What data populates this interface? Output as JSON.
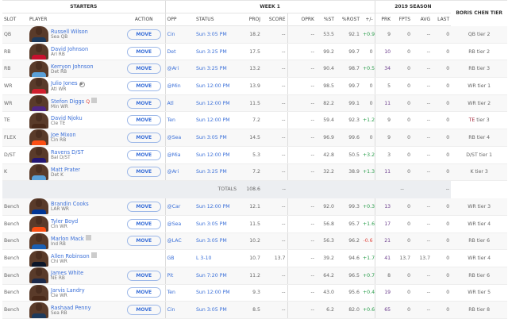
{
  "headers": {
    "starters": "STARTERS",
    "week": "WEEK 1",
    "season": "2019 SEASON",
    "tier": "BORIS CHEN TIER",
    "cols": [
      "SLOT",
      "PLAYER",
      "ACTION",
      "OPP",
      "STATUS",
      "PROJ",
      "SCORE",
      "OPRK",
      "%ST",
      "%ROST",
      "+/-",
      "PRK",
      "FPTS",
      "AVG",
      "LAST"
    ]
  },
  "move_label": "MOVE",
  "starters": [
    {
      "slot": "QB",
      "name": "Russell Wilson",
      "team": "Sea QB",
      "opp": "Cin",
      "status": "Sun 3:05 PM",
      "proj": "18.2",
      "score": "--",
      "oprk": "--",
      "st": "53.5",
      "rost": "92.1",
      "pm": "+0.9",
      "prk": "9",
      "fpts": "0",
      "avg": "--",
      "last": "0",
      "tier": "QB tier 2",
      "jersey": "#1d3a5c"
    },
    {
      "slot": "RB",
      "name": "David Johnson",
      "team": "Ari RB",
      "opp": "Det",
      "status": "Sun 3:25 PM",
      "proj": "17.5",
      "score": "--",
      "oprk": "--",
      "st": "99.2",
      "rost": "99.7",
      "pm": "0",
      "prk": "10",
      "fpts": "0",
      "avg": "--",
      "last": "0",
      "tier": "RB tier 2",
      "jersey": "#c8102e"
    },
    {
      "slot": "RB",
      "name": "Kerryon Johnson",
      "team": "Det RB",
      "opp": "@Ari",
      "status": "Sun 3:25 PM",
      "proj": "13.2",
      "score": "--",
      "oprk": "--",
      "st": "90.4",
      "rost": "98.7",
      "pm": "+0.5",
      "prk": "34",
      "fpts": "0",
      "avg": "--",
      "last": "0",
      "tier": "RB tier 3",
      "jersey": "#5aa0d8"
    },
    {
      "slot": "WR",
      "name": "Julio Jones",
      "team": "Atl WR",
      "opp": "@Min",
      "status": "Sun 12:00 PM",
      "proj": "13.9",
      "score": "--",
      "oprk": "--",
      "st": "98.5",
      "rost": "99.7",
      "pm": "0",
      "prk": "5",
      "fpts": "0",
      "avg": "--",
      "last": "0",
      "tier": "WR tier 1",
      "jersey": "#d0202e",
      "icon": "play"
    },
    {
      "slot": "WR",
      "name": "Stefon Diggs",
      "team": "Min WR",
      "opp": "Atl",
      "status": "Sun 12:00 PM",
      "proj": "11.5",
      "score": "--",
      "oprk": "--",
      "st": "82.2",
      "rost": "99.1",
      "pm": "0",
      "prk": "11",
      "fpts": "0",
      "avg": "--",
      "last": "0",
      "tier": "WR tier 2",
      "jersey": "#4f2683",
      "injury": "Q",
      "icon": "news"
    },
    {
      "slot": "TE",
      "name": "David Njoku",
      "team": "Cle TE",
      "opp": "Ten",
      "status": "Sun 12:00 PM",
      "proj": "7.2",
      "score": "--",
      "oprk": "--",
      "st": "59.4",
      "rost": "92.3",
      "pm": "+1.2",
      "prk": "9",
      "fpts": "0",
      "avg": "--",
      "last": "0",
      "tier": "TE tier 3",
      "jersey": "#4a2a1a"
    },
    {
      "slot": "FLEX",
      "name": "Joe Mixon",
      "team": "Cin RB",
      "opp": "@Sea",
      "status": "Sun 3:05 PM",
      "proj": "14.5",
      "score": "--",
      "oprk": "--",
      "st": "96.9",
      "rost": "99.6",
      "pm": "0",
      "prk": "9",
      "fpts": "0",
      "avg": "--",
      "last": "0",
      "tier": "RB tier 4",
      "jersey": "#fb4f14"
    },
    {
      "slot": "D/ST",
      "name": "Ravens D/ST",
      "team": "Bal D/ST",
      "opp": "@Mia",
      "status": "Sun 12:00 PM",
      "proj": "5.3",
      "score": "--",
      "oprk": "--",
      "st": "42.8",
      "rost": "50.5",
      "pm": "+3.2",
      "prk": "3",
      "fpts": "0",
      "avg": "--",
      "last": "0",
      "tier": "D/ST tier 1",
      "jersey": "#241773"
    },
    {
      "slot": "K",
      "name": "Matt Prater",
      "team": "Det K",
      "opp": "@Ari",
      "status": "Sun 3:25 PM",
      "proj": "7.2",
      "score": "--",
      "oprk": "--",
      "st": "32.2",
      "rost": "38.9",
      "pm": "+1.3",
      "prk": "11",
      "fpts": "0",
      "avg": "--",
      "last": "0",
      "tier": "K tier 3",
      "jersey": "#5aa0d8"
    }
  ],
  "totals": {
    "label": "TOTALS",
    "proj": "108.6",
    "score": "--",
    "fpts": "--",
    "last": "--"
  },
  "bench": [
    {
      "slot": "Bench",
      "name": "Brandin Cooks",
      "team": "LAR WR",
      "opp": "@Car",
      "status": "Sun 12:00 PM",
      "proj": "12.1",
      "score": "--",
      "oprk": "--",
      "st": "92.0",
      "rost": "99.3",
      "pm": "+0.3",
      "prk": "13",
      "fpts": "0",
      "avg": "--",
      "last": "0",
      "tier": "WR tier 3",
      "jersey": "#003594"
    },
    {
      "slot": "Bench",
      "name": "Tyler Boyd",
      "team": "Cin WR",
      "opp": "@Sea",
      "status": "Sun 3:05 PM",
      "proj": "11.5",
      "score": "--",
      "oprk": "--",
      "st": "56.8",
      "rost": "95.7",
      "pm": "+1.6",
      "prk": "17",
      "fpts": "0",
      "avg": "--",
      "last": "0",
      "tier": "WR tier 4",
      "jersey": "#fb4f14"
    },
    {
      "slot": "Bench",
      "name": "Marlon Mack",
      "team": "Ind RB",
      "opp": "@LAC",
      "status": "Sun 3:05 PM",
      "proj": "10.2",
      "score": "--",
      "oprk": "--",
      "st": "56.3",
      "rost": "96.2",
      "pm": "-0.6",
      "prk": "21",
      "fpts": "0",
      "avg": "--",
      "last": "0",
      "tier": "RB tier 6",
      "jersey": "#1a5fb4",
      "icon": "news"
    },
    {
      "slot": "Bench",
      "name": "Allen Robinson",
      "team": "Chi WR",
      "opp": "GB",
      "status": "L 3-10",
      "proj": "10.7",
      "score": "13.7",
      "oprk": "--",
      "st": "39.2",
      "rost": "94.6",
      "pm": "+1.7",
      "prk": "41",
      "fpts": "13.7",
      "avg": "13.7",
      "last": "0",
      "tier": "WR tier 4",
      "jersey": "#0b162a",
      "icon": "news",
      "nomove": true
    },
    {
      "slot": "Bench",
      "name": "James White",
      "team": "NE RB",
      "opp": "Pit",
      "status": "Sun 7:20 PM",
      "proj": "11.2",
      "score": "--",
      "oprk": "--",
      "st": "64.2",
      "rost": "96.5",
      "pm": "+0.7",
      "prk": "8",
      "fpts": "0",
      "avg": "--",
      "last": "0",
      "tier": "RB tier 6",
      "jersey": "#1c2a4a"
    },
    {
      "slot": "Bench",
      "name": "Jarvis Landry",
      "team": "Cle WR",
      "opp": "Ten",
      "status": "Sun 12:00 PM",
      "proj": "9.3",
      "score": "--",
      "oprk": "--",
      "st": "43.0",
      "rost": "95.6",
      "pm": "+0.4",
      "prk": "19",
      "fpts": "0",
      "avg": "--",
      "last": "0",
      "tier": "WR tier 5",
      "jersey": "#4a2a1a"
    },
    {
      "slot": "Bench",
      "name": "Rashaad Penny",
      "team": "Sea RB",
      "opp": "Cin",
      "status": "Sun 3:05 PM",
      "proj": "8.5",
      "score": "--",
      "oprk": "--",
      "st": "6.2",
      "rost": "82.0",
      "pm": "+0.6",
      "prk": "65",
      "fpts": "0",
      "avg": "--",
      "last": "0",
      "tier": "RB tier 8",
      "jersey": "#1d3a5c"
    }
  ]
}
